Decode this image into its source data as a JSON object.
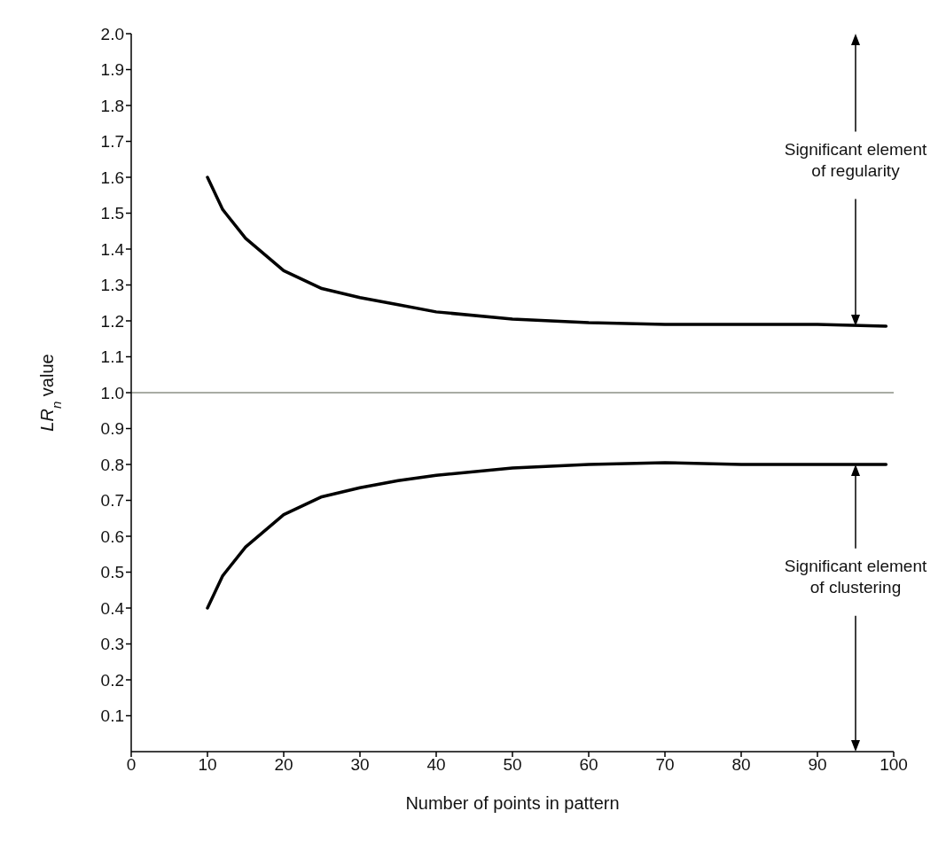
{
  "chart_data": {
    "type": "line",
    "xlabel": "Number of points in pattern",
    "ylabel": "LR$_{n}$ value",
    "xlim": [
      0,
      100
    ],
    "xticks": [
      0,
      10,
      20,
      30,
      40,
      50,
      60,
      70,
      80,
      90,
      100
    ],
    "ylim": [
      0,
      2
    ],
    "yticks": [
      0.1,
      0.2,
      0.3,
      0.4,
      0.5,
      0.6,
      0.7,
      0.8,
      0.9,
      {
        "value": 1,
        "label": "1.0"
      },
      1.1,
      1.2,
      1.3,
      1.4,
      1.5,
      1.6,
      1.7,
      1.8,
      1.9,
      {
        "value": 2,
        "label": "2.0"
      }
    ],
    "grid": false,
    "marker": "none",
    "line_style": "solid",
    "series": [
      {
        "color": "#000000",
        "x": [
          10,
          12,
          15,
          20,
          25,
          30,
          35,
          40,
          50,
          60,
          70,
          80,
          90,
          99
        ],
        "values": [
          1.6,
          1.51,
          1.43,
          1.34,
          1.29,
          1.265,
          1.245,
          1.225,
          1.205,
          1.195,
          1.19,
          1.19,
          1.19,
          1.185
        ]
      },
      {
        "color": "#000000",
        "x": [
          10,
          12,
          15,
          20,
          25,
          30,
          35,
          40,
          50,
          60,
          70,
          80,
          90,
          99
        ],
        "values": [
          0.4,
          0.49,
          0.57,
          0.66,
          0.71,
          0.735,
          0.755,
          0.77,
          0.79,
          0.8,
          0.805,
          0.8,
          0.8,
          0.8
        ]
      }
    ],
    "ref_lines": [
      {
        "axis": "y",
        "value": 1.0,
        "label": null,
        "color": "#a8aca4"
      }
    ],
    "annotations": [
      "Significant element\nof regularity",
      "Significant element\nof clustering"
    ]
  }
}
